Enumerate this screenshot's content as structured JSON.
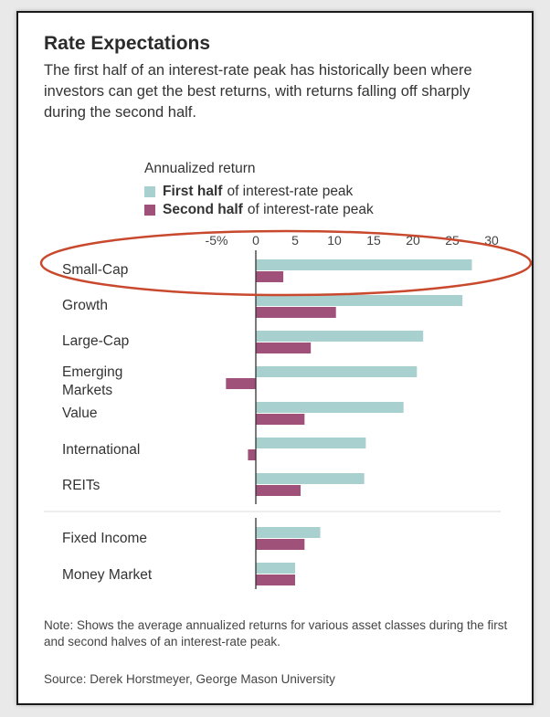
{
  "colors": {
    "first_half": "#a8d0cf",
    "second_half": "#a0517a",
    "highlight": "#c8492e"
  },
  "chart_data": {
    "type": "bar",
    "orientation": "horizontal",
    "title": "Rate Expectations",
    "subtitle": "The first half of an interest-rate peak has historically been where investors can get the best returns, with returns falling off sharply during the second half.",
    "xlabel": "Annualized return",
    "xlim": [
      -5,
      30
    ],
    "xticks": [
      "-5%",
      "0",
      "5",
      "10",
      "15",
      "20",
      "25",
      "30"
    ],
    "legend_position": "top",
    "categories": [
      "Small-Cap",
      "Growth",
      "Large-Cap",
      "Emerging Markets",
      "Value",
      "International",
      "REITs",
      "Fixed Income",
      "Money Market"
    ],
    "series": [
      {
        "name": "First half",
        "suffix": "of interest-rate peak",
        "values": [
          27.5,
          26.3,
          21.3,
          20.5,
          18.8,
          14.0,
          13.8,
          8.2,
          5.0
        ]
      },
      {
        "name": "Second half",
        "suffix": "of interest-rate peak",
        "values": [
          3.5,
          10.2,
          7.0,
          -3.8,
          6.2,
          -1.0,
          5.7,
          6.2,
          5.0
        ]
      }
    ],
    "highlighted_category": "Small-Cap",
    "note": "Note: Shows the average annualized returns for various asset classes during the first and second halves of an interest-rate peak.",
    "source": "Source: Derek Horstmeyer, George Mason University"
  }
}
